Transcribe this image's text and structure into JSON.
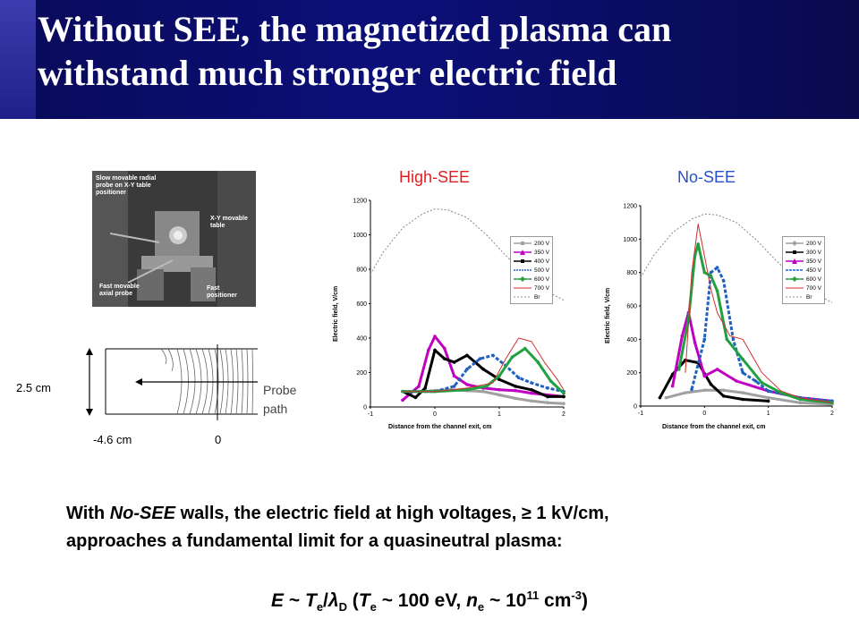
{
  "title": {
    "line1": "Without SEE, the magnetized plasma can",
    "line2": "withstand much stronger electric field"
  },
  "photo": {
    "label_radial": "Slow movable radial probe on X-Y table positioner",
    "label_table": "X-Y movable table",
    "label_axial": "Fast movable axial probe",
    "label_fast": "Fast positioner"
  },
  "diagram": {
    "height_label": "2.5 cm",
    "left_label": "-4.6 cm",
    "zero_label": "0",
    "probe_label": "Probe path"
  },
  "charts": [
    {
      "title": "High-SEE",
      "title_color": "#e02020",
      "ylabel": "Electric field, V/cm",
      "xlabel": "Distance from the channel exit, cm",
      "yticks": [
        "0",
        "200",
        "400",
        "600",
        "800",
        "1000",
        "1200"
      ],
      "xticks": [
        "-1",
        "0",
        "1",
        "2"
      ],
      "legend": [
        "200 V",
        "350 V",
        "400 V",
        "500 V",
        "600 V",
        "700 V",
        "Br"
      ]
    },
    {
      "title": "No-SEE",
      "title_color": "#2850c8",
      "ylabel": "Electric field, V/cm",
      "xlabel": "Distance from the channel exit, cm",
      "yticks": [
        "0",
        "200",
        "400",
        "600",
        "800",
        "1000",
        "1200"
      ],
      "xticks": [
        "-1",
        "0",
        "1",
        "2"
      ],
      "legend": [
        "200 V",
        "300 V",
        "350 V",
        "450 V",
        "600 V",
        "700 V",
        "Br"
      ]
    }
  ],
  "chart_data": [
    {
      "type": "line",
      "title": "High-SEE",
      "xlabel": "Distance from the channel exit, cm",
      "ylabel": "Electric field, V/cm",
      "xlim": [
        -1,
        2
      ],
      "ylim": [
        0,
        1200
      ],
      "series": [
        {
          "name": "200 V",
          "color": "#a0a0a0",
          "x": [
            -0.5,
            -0.25,
            0,
            0.25,
            0.5,
            0.75,
            1.0,
            1.25,
            1.5,
            1.75,
            2.0
          ],
          "y": [
            90,
            90,
            95,
            100,
            95,
            90,
            70,
            50,
            35,
            25,
            20
          ]
        },
        {
          "name": "350 V",
          "color": "#c000c0",
          "x": [
            -0.5,
            -0.25,
            -0.1,
            0,
            0.15,
            0.3,
            0.5,
            0.75,
            1.0,
            1.25,
            1.5,
            2.0
          ],
          "y": [
            40,
            120,
            330,
            410,
            340,
            180,
            130,
            110,
            100,
            95,
            80,
            60
          ]
        },
        {
          "name": "400 V",
          "color": "#000000",
          "x": [
            -0.5,
            -0.3,
            -0.15,
            0,
            0.15,
            0.3,
            0.5,
            0.75,
            1.0,
            1.25,
            1.5,
            1.75,
            2.0
          ],
          "y": [
            90,
            55,
            110,
            330,
            280,
            260,
            300,
            220,
            160,
            120,
            100,
            60,
            60
          ]
        },
        {
          "name": "500 V",
          "color": "#2060c0",
          "x": [
            -0.5,
            0,
            0.3,
            0.5,
            0.7,
            0.9,
            1.1,
            1.3,
            1.5,
            1.75,
            2.0
          ],
          "y": [
            90,
            90,
            120,
            220,
            280,
            300,
            240,
            170,
            140,
            110,
            90
          ]
        },
        {
          "name": "600 V",
          "color": "#20a040",
          "x": [
            -0.5,
            0,
            0.5,
            0.8,
            1.0,
            1.2,
            1.4,
            1.6,
            1.8,
            2.0
          ],
          "y": [
            90,
            90,
            100,
            120,
            180,
            290,
            340,
            260,
            150,
            80
          ]
        },
        {
          "name": "700 V",
          "color": "#d03030",
          "x": [
            -0.5,
            0,
            0.5,
            0.9,
            1.1,
            1.3,
            1.5,
            1.7,
            1.9,
            2.0
          ],
          "y": [
            90,
            90,
            110,
            140,
            280,
            400,
            380,
            260,
            160,
            100
          ]
        },
        {
          "name": "Br",
          "color": "#888888",
          "x": [
            -1,
            -0.8,
            -0.5,
            -0.2,
            0,
            0.2,
            0.5,
            0.8,
            1.1,
            1.4,
            1.7,
            2.0
          ],
          "y": [
            770,
            900,
            1040,
            1120,
            1150,
            1145,
            1100,
            1000,
            880,
            770,
            680,
            620
          ]
        }
      ]
    },
    {
      "type": "line",
      "title": "No-SEE",
      "xlabel": "Distance from the channel exit, cm",
      "ylabel": "Electric field, V/cm",
      "xlim": [
        -1,
        2
      ],
      "ylim": [
        0,
        1200
      ],
      "series": [
        {
          "name": "200 V",
          "color": "#a0a0a0",
          "x": [
            -0.6,
            -0.3,
            0,
            0.3,
            0.6,
            1.0,
            1.5,
            2.0
          ],
          "y": [
            50,
            80,
            95,
            95,
            80,
            50,
            20,
            10
          ]
        },
        {
          "name": "300 V",
          "color": "#000000",
          "x": [
            -0.7,
            -0.5,
            -0.3,
            -0.1,
            0.1,
            0.3,
            0.6,
            1.0
          ],
          "y": [
            50,
            190,
            275,
            260,
            130,
            60,
            40,
            30
          ]
        },
        {
          "name": "350 V",
          "color": "#c000c0",
          "x": [
            -0.5,
            -0.35,
            -0.25,
            -0.15,
            0,
            0.2,
            0.5,
            1.0,
            1.5,
            2.0
          ],
          "y": [
            120,
            420,
            560,
            380,
            180,
            220,
            150,
            90,
            50,
            30
          ]
        },
        {
          "name": "450 V",
          "color": "#2060c0",
          "x": [
            -0.2,
            0,
            0.1,
            0.2,
            0.3,
            0.45,
            0.6,
            0.8,
            1.0,
            1.5,
            2.0
          ],
          "y": [
            100,
            400,
            800,
            830,
            750,
            400,
            200,
            150,
            90,
            50,
            30
          ]
        },
        {
          "name": "600 V",
          "color": "#20a040",
          "x": [
            -0.4,
            -0.25,
            -0.15,
            -0.1,
            0,
            0.1,
            0.2,
            0.35,
            0.6,
            0.9,
            1.2,
            1.5,
            2.0
          ],
          "y": [
            220,
            520,
            900,
            970,
            800,
            780,
            690,
            400,
            280,
            140,
            80,
            40,
            20
          ]
        },
        {
          "name": "700 V",
          "color": "#d03030",
          "x": [
            -0.3,
            -0.2,
            -0.1,
            0,
            0.1,
            0.2,
            0.4,
            0.6,
            0.9,
            1.2,
            1.5,
            2.0
          ],
          "y": [
            200,
            800,
            1090,
            900,
            700,
            560,
            420,
            400,
            200,
            90,
            50,
            20
          ]
        },
        {
          "name": "Br",
          "color": "#888888",
          "x": [
            -1,
            -0.8,
            -0.5,
            -0.2,
            0,
            0.2,
            0.5,
            0.8,
            1.1,
            1.4,
            1.7,
            2.0
          ],
          "y": [
            770,
            900,
            1040,
            1120,
            1150,
            1145,
            1100,
            1000,
            880,
            770,
            680,
            620
          ]
        }
      ]
    }
  ],
  "body": {
    "prefix": "With ",
    "em": "No-SEE",
    "line1_rest": " walls,  the electric field at high voltages, ",
    "ge": "≥",
    "line1_end": " 1 kV/cm,",
    "line2": "approaches a fundamental limit for a quasineutral plasma:"
  },
  "equation": {
    "E": "E",
    "tilde1": " ~ ",
    "T": "T",
    "e_sub": "e",
    "slash": "/",
    "lambda": "λ",
    "D_sub": "D",
    "open": "  (",
    "T2": "T",
    "e_sub2": "e",
    "mid": " ~ 100 eV, ",
    "n": "n",
    "e_sub3": "e",
    "tail": " ~ 10",
    "exp1": "11",
    "unit": " cm",
    "exp2": "-3",
    "close": ")"
  },
  "colors": {
    "header": "#0b0f78",
    "high_see_title": "#e02020",
    "no_see_title": "#2850c8"
  }
}
